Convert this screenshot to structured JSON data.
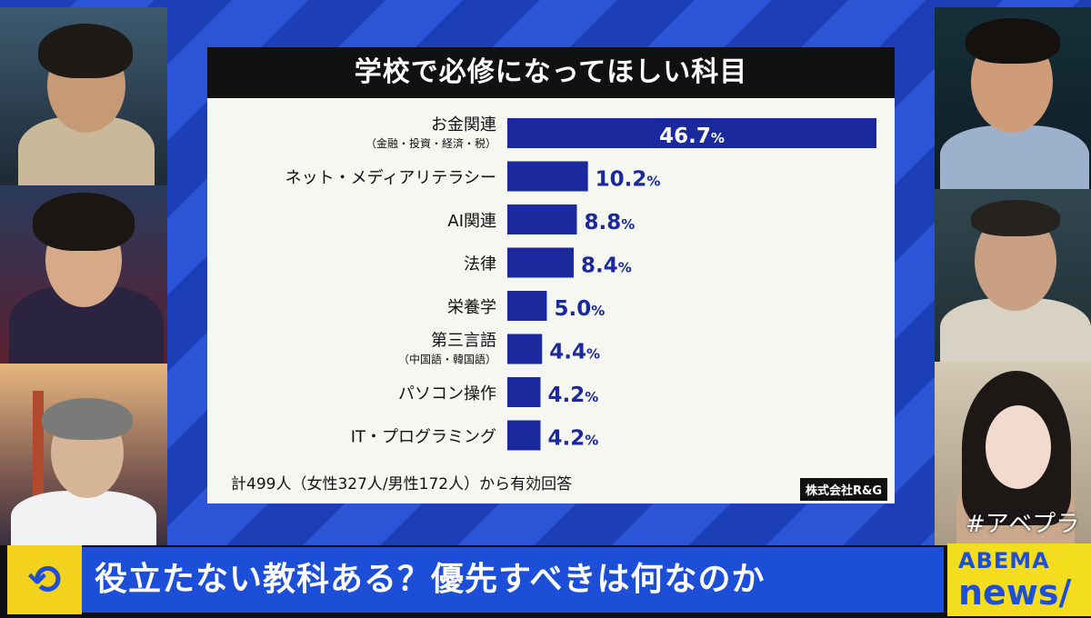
{
  "chart_data": {
    "type": "bar",
    "orientation": "horizontal",
    "title": "学校で必修になってほしい科目",
    "categories": [
      {
        "label": "お金関連",
        "sublabel": "（金融・投資・経済・税）"
      },
      {
        "label": "ネット・メディアリテラシー",
        "sublabel": ""
      },
      {
        "label": "AI関連",
        "sublabel": ""
      },
      {
        "label": "法律",
        "sublabel": ""
      },
      {
        "label": "栄養学",
        "sublabel": ""
      },
      {
        "label": "第三言語",
        "sublabel": "（中国語・韓国語）"
      },
      {
        "label": "パソコン操作",
        "sublabel": ""
      },
      {
        "label": "IT・プログラミング",
        "sublabel": ""
      }
    ],
    "values": [
      46.7,
      10.2,
      8.8,
      8.4,
      5.0,
      4.4,
      4.2,
      4.2
    ],
    "value_labels": [
      "46.7",
      "10.2",
      "8.8",
      "8.4",
      "5.0",
      "4.4",
      "4.2",
      "4.2"
    ],
    "unit": "%",
    "bar_color": "#1a2a9e",
    "note": "計499人（女性327人/男性172人）から有効回答",
    "source": "株式会社R&G"
  },
  "lower_third": {
    "headline": "役立たない教科ある？優先すべきは何なのか",
    "brand_line1": "ABEMA",
    "brand_line2": "news/",
    "hashtag": "#アベプラ",
    "logo_icon": "refresh-arrows-icon"
  },
  "colors": {
    "headline_bg": "#1d4ed8",
    "brand_bg": "#f4dc1e",
    "stage_blue": "#1c3fb8"
  }
}
